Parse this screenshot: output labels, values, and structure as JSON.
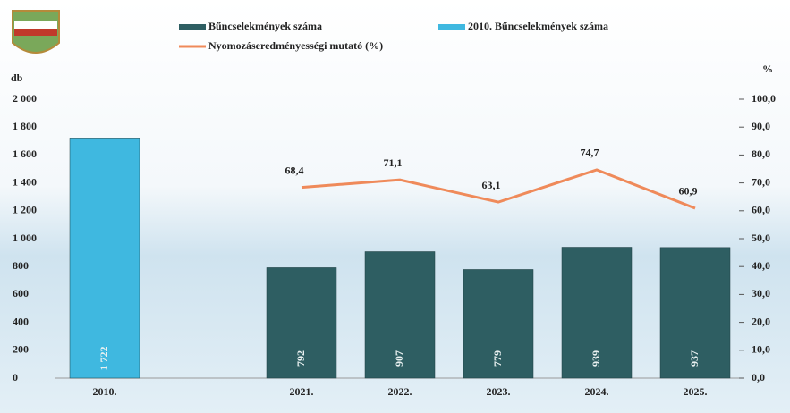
{
  "chart_data": {
    "type": "bar-line",
    "categories": [
      "2010.",
      null,
      "2021.",
      "2022.",
      "2023.",
      "2024.",
      "2025."
    ],
    "series": [
      {
        "name": "Bűncselekmények száma",
        "color": "#2e5e62",
        "values": [
          null,
          null,
          792,
          907,
          779,
          939,
          937
        ]
      },
      {
        "name": "2010. Bűncselekmények száma",
        "color": "#3fb8e0",
        "values": [
          1722,
          null,
          null,
          null,
          null,
          null,
          null
        ],
        "value_labels": [
          "1 722",
          null,
          null,
          null,
          null,
          null,
          null
        ]
      },
      {
        "name": "Nyomozáseredményességi mutató (%)",
        "color": "#ef8a5a",
        "axis": "y2",
        "values": [
          null,
          null,
          68.4,
          71.1,
          63.1,
          74.7,
          60.9
        ],
        "value_labels": [
          null,
          null,
          "68,4",
          "71,1",
          "63,1",
          "74,7",
          "60,9"
        ]
      }
    ],
    "ylabel": "db",
    "y2label": "%",
    "ylim": [
      0,
      2000
    ],
    "yticks": [
      0,
      200,
      400,
      600,
      800,
      {
        "value": 1000,
        "label": "1 000"
      },
      {
        "value": 1200,
        "label": "1 200"
      },
      {
        "value": 1400,
        "label": "1 400"
      },
      {
        "value": 1600,
        "label": "1 600"
      },
      {
        "value": 1800,
        "label": "1 800"
      },
      {
        "value": 2000,
        "label": "2 000"
      }
    ],
    "y2lim": [
      0,
      100
    ],
    "y2ticks": [
      {
        "value": 0,
        "label": "0,0"
      },
      {
        "value": 10,
        "label": "10,0"
      },
      {
        "value": 20,
        "label": "20,0"
      },
      {
        "value": 30,
        "label": "30,0"
      },
      {
        "value": 40,
        "label": "40,0"
      },
      {
        "value": 50,
        "label": "50,0"
      },
      {
        "value": 60,
        "label": "60,0"
      },
      {
        "value": 70,
        "label": "70,0"
      },
      {
        "value": 80,
        "label": "80,0"
      },
      {
        "value": 90,
        "label": "90,0"
      },
      {
        "value": 100,
        "label": "100,0"
      }
    ]
  }
}
